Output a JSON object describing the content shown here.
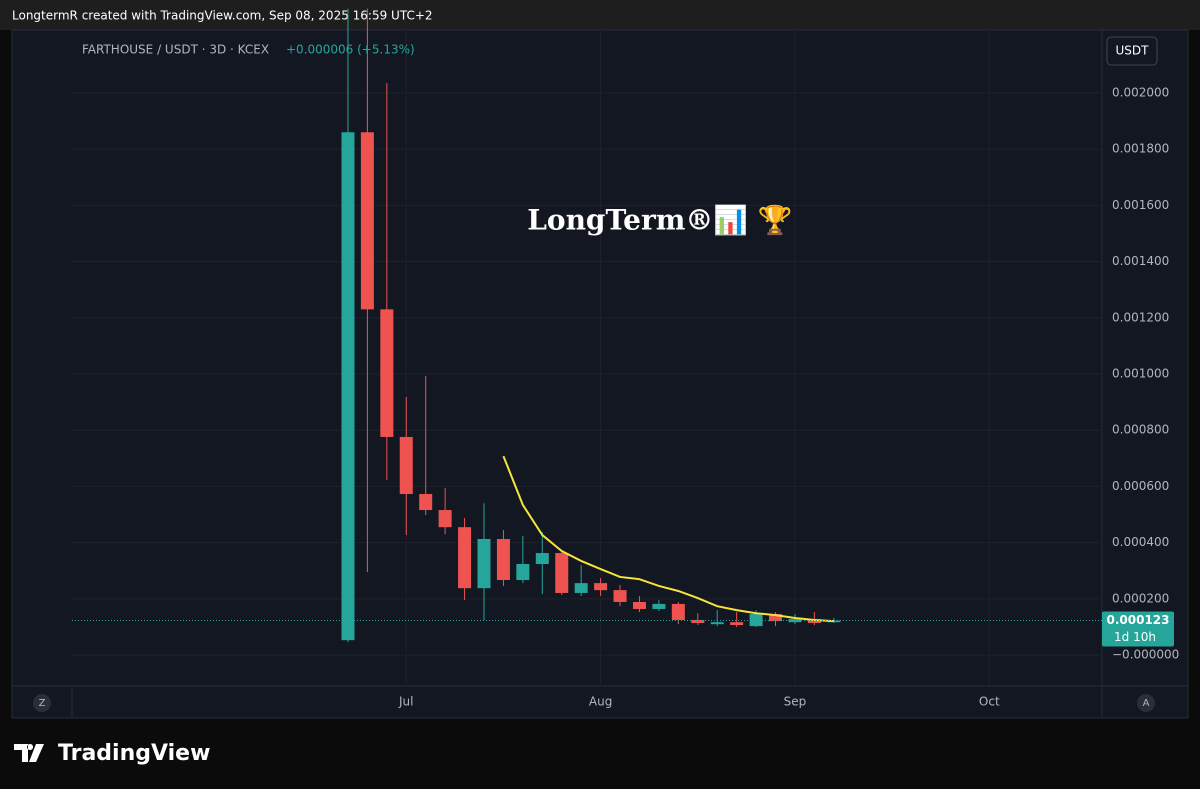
{
  "header": "LongtermR created with TradingView.com, Sep 08, 2025 16:59 UTC+2",
  "footer": "TradingView",
  "chart_data": {
    "type": "candlestick",
    "symbol": "FARTHOUSE / USDT · 3D · KCEX",
    "change": "+0.000006 (+5.13%)",
    "watermark": "LongTerm®📊 🏆",
    "currency": "USDT",
    "scale_buttons": [
      "Z",
      "A"
    ],
    "up_color": "#26a69a",
    "down_color": "#ef5350",
    "categories": [
      null,
      null,
      null,
      null,
      null,
      null,
      null,
      null,
      null,
      null,
      null,
      null,
      null,
      null,
      null,
      null,
      null,
      null,
      null,
      null,
      null,
      null,
      null,
      null,
      null,
      null
    ],
    "open": [
      5.3e-05,
      0.00186,
      0.00123,
      0.000776,
      0.000573,
      0.000516,
      0.000455,
      0.000238,
      0.000413,
      0.000267,
      0.000324,
      0.000363,
      0.000221,
      0.000256,
      0.000231,
      0.000189,
      0.000164,
      0.000182,
      0.000125,
      0.00011,
      0.000117,
      0.000103,
      0.000146,
      0.000117,
      0.000128,
      0.000117
    ],
    "high": [
      0.0023,
      0.0023,
      0.002035,
      0.000918,
      0.000993,
      0.000594,
      0.000488,
      0.00054,
      0.000445,
      0.000424,
      0.000438,
      0.000374,
      0.00032,
      0.000274,
      0.000249,
      0.00021,
      0.000196,
      0.000189,
      0.000149,
      0.00016,
      0.000153,
      0.00016,
      0.000153,
      0.000146,
      0.000153,
      0.000132
    ],
    "low": [
      4.6e-05,
      0.000295,
      0.000623,
      0.000427,
      0.000498,
      0.00043,
      0.000196,
      0.000125,
      0.000246,
      0.000256,
      0.000217,
      0.000214,
      0.00021,
      0.00021,
      0.000174,
      0.000153,
      0.000157,
      0.00011,
      0.000107,
      0.000103,
      0.0001,
      0.0001,
      0.000103,
      0.00011,
      0.000107,
      0.000114
    ],
    "close": [
      0.00186,
      0.00123,
      0.000776,
      0.000573,
      0.000516,
      0.000455,
      0.000238,
      0.000413,
      0.000267,
      0.000324,
      0.000363,
      0.000221,
      0.000256,
      0.000231,
      0.000189,
      0.000164,
      0.000182,
      0.000125,
      0.000114,
      0.000117,
      0.000107,
      0.000146,
      0.000121,
      0.000128,
      0.000114,
      0.000123
    ],
    "ma": {
      "color": "#f5e43a",
      "values": [
        null,
        null,
        null,
        null,
        null,
        null,
        null,
        null,
        0.000708,
        0.000534,
        0.000427,
        0.00037,
        0.000335,
        0.000306,
        0.000278,
        0.00027,
        0.000246,
        0.000228,
        0.000203,
        0.000174,
        0.00016,
        0.000149,
        0.000142,
        0.000132,
        0.000125,
        0.000121
      ]
    },
    "last_price": {
      "value": 0.000123,
      "label": "0.000123"
    },
    "countdown": "1d 10h",
    "ylim": [
      -0.00011,
      0.002206
    ],
    "yticks": [
      {
        "value": 0,
        "label": "−0.000000"
      },
      {
        "value": 0.0002,
        "label": "0.000200"
      },
      {
        "value": 0.0004,
        "label": "0.000400"
      },
      {
        "value": 0.0006,
        "label": "0.000600"
      },
      {
        "value": 0.0008,
        "label": "0.000800"
      },
      {
        "value": 0.001,
        "label": "0.001000"
      },
      {
        "value": 0.0012,
        "label": "0.001200"
      },
      {
        "value": 0.0014,
        "label": "0.001400"
      },
      {
        "value": 0.0016,
        "label": "0.001600"
      },
      {
        "value": 0.0018,
        "label": "0.001800"
      },
      {
        "value": 0.002,
        "label": "0.002000"
      }
    ],
    "xlim": [
      -14.2,
      38.8
    ],
    "xticks": [
      {
        "value": 3,
        "label": "Jul"
      },
      {
        "value": 13,
        "label": "Aug"
      },
      {
        "value": 23,
        "label": "Sep"
      },
      {
        "value": 33,
        "label": "Oct"
      }
    ],
    "grid": true
  }
}
